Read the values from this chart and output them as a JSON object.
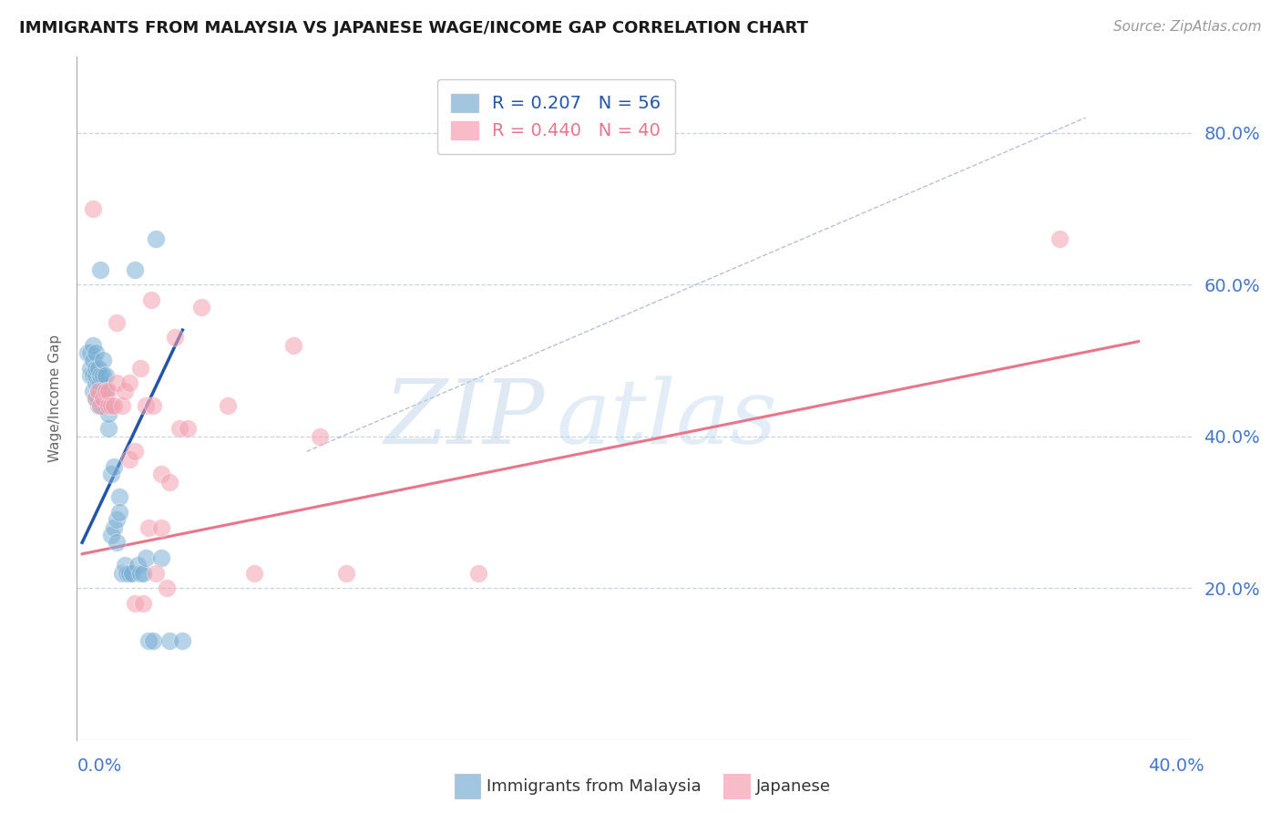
{
  "title": "IMMIGRANTS FROM MALAYSIA VS JAPANESE WAGE/INCOME GAP CORRELATION CHART",
  "source": "Source: ZipAtlas.com",
  "ylabel": "Wage/Income Gap",
  "ytick_vals": [
    0.2,
    0.4,
    0.6,
    0.8
  ],
  "ytick_labels": [
    "20.0%",
    "40.0%",
    "60.0%",
    "80.0%"
  ],
  "xtick_vals": [
    0.0,
    0.4
  ],
  "xtick_labels": [
    "0.0%",
    "40.0%"
  ],
  "legend_r1": "R = 0.207",
  "legend_n1": "N = 56",
  "legend_r2": "R = 0.440",
  "legend_n2": "N = 40",
  "legend_label1": "Immigrants from Malaysia",
  "legend_label2": "Japanese",
  "blue_color": "#7BAFD4",
  "pink_color": "#F4A0B0",
  "blue_line_color": "#2255AA",
  "pink_line_color": "#E8758A",
  "dashed_line_color": "#8899BB",
  "axis_color": "#4477CC",
  "grid_color": "#BBCCDD",
  "watermark_color": "#C8DCF0",
  "blue_dots_x": [
    0.002,
    0.003,
    0.003,
    0.003,
    0.004,
    0.004,
    0.004,
    0.004,
    0.005,
    0.005,
    0.005,
    0.005,
    0.005,
    0.006,
    0.006,
    0.006,
    0.006,
    0.006,
    0.007,
    0.007,
    0.007,
    0.007,
    0.007,
    0.008,
    0.008,
    0.008,
    0.008,
    0.009,
    0.009,
    0.009,
    0.01,
    0.01,
    0.011,
    0.011,
    0.012,
    0.012,
    0.013,
    0.013,
    0.014,
    0.014,
    0.015,
    0.016,
    0.017,
    0.018,
    0.019,
    0.02,
    0.021,
    0.022,
    0.023,
    0.024,
    0.025,
    0.027,
    0.028,
    0.03,
    0.033,
    0.038
  ],
  "blue_dots_y": [
    0.51,
    0.48,
    0.49,
    0.51,
    0.46,
    0.48,
    0.5,
    0.52,
    0.45,
    0.47,
    0.48,
    0.49,
    0.51,
    0.44,
    0.45,
    0.46,
    0.47,
    0.49,
    0.44,
    0.46,
    0.47,
    0.48,
    0.62,
    0.44,
    0.46,
    0.48,
    0.5,
    0.44,
    0.46,
    0.48,
    0.41,
    0.43,
    0.27,
    0.35,
    0.28,
    0.36,
    0.29,
    0.26,
    0.32,
    0.3,
    0.22,
    0.23,
    0.22,
    0.22,
    0.22,
    0.62,
    0.23,
    0.22,
    0.22,
    0.24,
    0.13,
    0.13,
    0.66,
    0.24,
    0.13,
    0.13
  ],
  "pink_dots_x": [
    0.004,
    0.005,
    0.006,
    0.007,
    0.008,
    0.009,
    0.01,
    0.01,
    0.011,
    0.012,
    0.013,
    0.013,
    0.015,
    0.016,
    0.018,
    0.018,
    0.02,
    0.02,
    0.022,
    0.023,
    0.024,
    0.025,
    0.026,
    0.027,
    0.028,
    0.03,
    0.03,
    0.032,
    0.033,
    0.035,
    0.037,
    0.04,
    0.045,
    0.055,
    0.065,
    0.08,
    0.09,
    0.1,
    0.15,
    0.37
  ],
  "pink_dots_y": [
    0.7,
    0.45,
    0.46,
    0.44,
    0.45,
    0.46,
    0.44,
    0.46,
    0.44,
    0.44,
    0.55,
    0.47,
    0.44,
    0.46,
    0.37,
    0.47,
    0.38,
    0.18,
    0.49,
    0.18,
    0.44,
    0.28,
    0.58,
    0.44,
    0.22,
    0.35,
    0.28,
    0.2,
    0.34,
    0.53,
    0.41,
    0.41,
    0.57,
    0.44,
    0.22,
    0.52,
    0.4,
    0.22,
    0.22,
    0.66
  ],
  "blue_line_x": [
    0.0,
    0.038
  ],
  "blue_line_y": [
    0.26,
    0.54
  ],
  "pink_line_x": [
    0.0,
    0.4
  ],
  "pink_line_y": [
    0.245,
    0.525
  ],
  "dashed_line_x": [
    0.085,
    0.38
  ],
  "dashed_line_y": [
    0.38,
    0.82
  ],
  "xlim": [
    -0.002,
    0.42
  ],
  "ylim": [
    0.0,
    0.9
  ]
}
